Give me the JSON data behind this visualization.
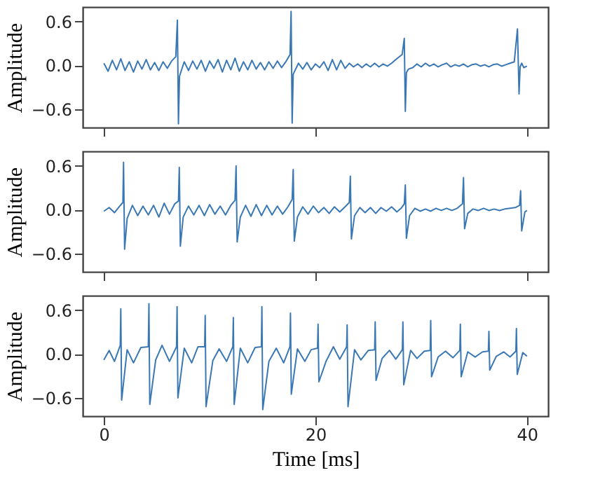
{
  "chart_data": [
    {
      "type": "line",
      "ylabel": "Amplitude",
      "xlim": [
        -2,
        42
      ],
      "xticks": [
        0,
        20,
        40
      ],
      "ylim": [
        -0.85,
        0.8
      ],
      "yticks": [
        {
          "value": -0.6,
          "label": "−0.6"
        },
        {
          "value": 0,
          "label": "0.0"
        },
        {
          "value": 0.6,
          "label": "0.6"
        }
      ],
      "tick_labels": "y",
      "grid": false,
      "series": [
        {
          "color": "#3a78b5",
          "x": [
            0,
            0.4,
            0.8,
            1.2,
            1.6,
            2,
            2.4,
            2.8,
            3.2,
            3.6,
            4,
            4.4,
            4.8,
            5.2,
            5.6,
            6,
            6.4,
            6.8,
            6.95,
            7.05,
            7.15,
            7.3,
            7.6,
            8,
            8.4,
            8.8,
            9.2,
            9.6,
            10,
            10.4,
            10.8,
            11.2,
            11.6,
            12,
            12.4,
            12.8,
            13.2,
            13.6,
            14,
            14.4,
            14.8,
            15.2,
            15.6,
            16,
            16.4,
            16.8,
            17.2,
            17.6,
            17.7,
            17.8,
            17.9,
            18.1,
            18.4,
            18.8,
            19.2,
            19.6,
            20,
            20.4,
            20.8,
            21.2,
            21.6,
            22,
            22.4,
            22.8,
            23.2,
            23.6,
            24,
            24.4,
            24.8,
            25.2,
            25.6,
            26,
            26.4,
            26.8,
            27.2,
            27.6,
            28.2,
            28.4,
            28.5,
            28.6,
            28.8,
            29.2,
            29.6,
            30,
            30.4,
            30.8,
            31.2,
            31.6,
            32,
            32.4,
            32.8,
            33.2,
            33.6,
            34,
            34.4,
            34.8,
            35.2,
            35.6,
            36,
            36.4,
            36.8,
            37.2,
            37.6,
            38,
            38.4,
            38.8,
            39.1,
            39.25,
            39.35,
            39.5,
            39.7,
            40
          ],
          "values": [
            0.03,
            -0.08,
            0.07,
            -0.06,
            0.09,
            -0.07,
            0.05,
            -0.09,
            0.06,
            -0.05,
            0.08,
            -0.06,
            0.04,
            -0.07,
            0.05,
            -0.04,
            0.06,
            0.12,
            0.62,
            -0.8,
            -0.15,
            -0.08,
            0.05,
            -0.07,
            0.06,
            -0.05,
            0.07,
            -0.08,
            0.06,
            -0.04,
            0.08,
            -0.09,
            0.07,
            -0.06,
            0.1,
            -0.08,
            0.05,
            -0.06,
            0.07,
            -0.05,
            0.04,
            -0.06,
            0.05,
            -0.04,
            0.06,
            -0.03,
            0.05,
            0.15,
            0.74,
            -0.79,
            -0.12,
            -0.06,
            0.03,
            -0.05,
            0.04,
            -0.06,
            0.02,
            -0.03,
            0.05,
            -0.07,
            0.08,
            -0.06,
            0.07,
            -0.04,
            0.03,
            -0.02,
            0.02,
            -0.03,
            0.02,
            -0.02,
            0.03,
            -0.02,
            0.02,
            -0.01,
            0.03,
            0.08,
            0.15,
            0.37,
            -0.63,
            -0.1,
            -0.05,
            -0.03,
            0.02,
            -0.02,
            0.03,
            -0.01,
            0.02,
            -0.02,
            0.01,
            0.03,
            -0.02,
            0.01,
            -0.01,
            0.02,
            -0.02,
            0.01,
            0.02,
            -0.01,
            0.01,
            -0.02,
            0.01,
            0.02,
            -0.01,
            0.01,
            0.03,
            0.05,
            0.5,
            -0.39,
            -0.02,
            0.03,
            -0.03,
            -0.01
          ]
        }
      ]
    },
    {
      "type": "line",
      "ylabel": "Amplitude",
      "xlim": [
        -2,
        42
      ],
      "xticks": [
        0,
        20,
        40
      ],
      "ylim": [
        -0.85,
        0.8
      ],
      "yticks": [
        {
          "value": -0.6,
          "label": "−0.6"
        },
        {
          "value": 0,
          "label": "0.0"
        },
        {
          "value": 0.6,
          "label": "0.6"
        }
      ],
      "tick_labels": "y",
      "grid": false,
      "series": [
        {
          "color": "#3a78b5",
          "x": [
            0,
            0.5,
            1.0,
            1.5,
            1.8,
            1.86,
            1.96,
            2.2,
            2.7,
            3.2,
            3.7,
            4.2,
            4.7,
            5.2,
            5.7,
            6.2,
            6.7,
            7.05,
            7.13,
            7.23,
            7.5,
            8,
            8.5,
            9,
            9.5,
            10,
            10.5,
            11,
            11.5,
            12,
            12.4,
            12.5,
            12.6,
            12.9,
            13.4,
            13.9,
            14.4,
            14.9,
            15.4,
            15.9,
            16.4,
            16.9,
            17.4,
            17.8,
            17.9,
            18.0,
            18.3,
            18.8,
            19.3,
            19.8,
            20.3,
            20.8,
            21.3,
            21.8,
            22.3,
            22.8,
            23.2,
            23.3,
            23.4,
            23.7,
            24.2,
            24.7,
            25.2,
            25.7,
            26.2,
            26.7,
            27.2,
            27.7,
            28.1,
            28.4,
            28.5,
            28.6,
            28.9,
            29.4,
            29.9,
            30.4,
            30.9,
            31.4,
            31.9,
            32.4,
            32.9,
            33.4,
            33.9,
            34.0,
            34.1,
            34.4,
            34.9,
            35.4,
            35.9,
            36.4,
            36.9,
            37.4,
            37.9,
            38.4,
            38.9,
            39.3,
            39.4,
            39.5,
            39.8,
            40
          ],
          "values": [
            -0.02,
            0.03,
            -0.04,
            0.05,
            0.1,
            0.65,
            -0.54,
            -0.12,
            0.06,
            -0.08,
            0.05,
            -0.07,
            0.06,
            -0.1,
            0.09,
            -0.06,
            0.08,
            0.12,
            0.58,
            -0.5,
            -0.1,
            0.05,
            -0.07,
            0.06,
            -0.08,
            0.07,
            -0.06,
            0.05,
            -0.07,
            0.06,
            0.13,
            0.6,
            -0.44,
            -0.1,
            0.06,
            -0.09,
            0.07,
            -0.08,
            0.06,
            -0.07,
            0.05,
            -0.06,
            0.04,
            0.14,
            0.55,
            -0.43,
            -0.1,
            0.04,
            -0.06,
            0.05,
            -0.04,
            0.03,
            -0.05,
            0.04,
            -0.03,
            0.04,
            0.1,
            0.46,
            -0.4,
            -0.08,
            0.03,
            -0.04,
            0.03,
            -0.05,
            0.03,
            -0.02,
            0.04,
            -0.03,
            0.02,
            0.08,
            0.34,
            -0.39,
            -0.08,
            0.02,
            -0.02,
            0.01,
            -0.02,
            0.02,
            -0.01,
            0.02,
            -0.01,
            0.02,
            0.08,
            0.44,
            -0.26,
            -0.05,
            0.01,
            -0.01,
            0.02,
            -0.01,
            0.01,
            -0.01,
            0.01,
            0.02,
            0.03,
            0.06,
            0.26,
            -0.29,
            -0.03,
            -0.01
          ]
        }
      ]
    },
    {
      "type": "line",
      "xlabel": "Time [ms]",
      "ylabel": "Amplitude",
      "xlim": [
        -2,
        42
      ],
      "xticks": [
        0,
        20,
        40
      ],
      "ylim": [
        -0.85,
        0.8
      ],
      "yticks": [
        {
          "value": -0.6,
          "label": "−0.6"
        },
        {
          "value": 0,
          "label": "0.0"
        },
        {
          "value": 0.6,
          "label": "0.6"
        }
      ],
      "grid": false,
      "series": [
        {
          "color": "#3a78b5",
          "x": [
            0,
            0.5,
            1.0,
            1.55,
            1.6,
            1.68,
            2.2,
            2.8,
            3.5,
            4.2,
            4.26,
            4.34,
            4.9,
            5.5,
            6.2,
            6.87,
            6.92,
            7.0,
            7.6,
            8.3,
            8.9,
            9.53,
            9.58,
            9.66,
            10.3,
            10.9,
            11.6,
            12.19,
            12.24,
            12.32,
            12.9,
            13.6,
            14.3,
            14.89,
            14.94,
            15.02,
            15.6,
            16.3,
            17.0,
            17.59,
            17.64,
            17.72,
            18.3,
            19.0,
            19.6,
            20.2,
            20.25,
            20.33,
            21.0,
            21.7,
            22.3,
            22.95,
            23.0,
            23.08,
            23.7,
            24.3,
            25.0,
            25.6,
            25.65,
            25.73,
            26.3,
            27.0,
            27.6,
            28.22,
            28.27,
            28.35,
            29.0,
            29.6,
            30.3,
            30.85,
            30.9,
            30.98,
            31.6,
            32.3,
            33.0,
            33.65,
            33.7,
            33.78,
            34.4,
            35.1,
            35.8,
            36.35,
            36.4,
            36.48,
            37.1,
            37.8,
            38.4,
            38.95,
            39.0,
            39.08,
            39.6,
            40
          ],
          "values": [
            -0.08,
            0.05,
            -0.1,
            0.12,
            0.62,
            -0.63,
            0.06,
            -0.12,
            0.09,
            0.1,
            0.69,
            -0.69,
            -0.08,
            0.12,
            -0.1,
            0.1,
            0.65,
            -0.6,
            0.08,
            -0.12,
            0.1,
            0.1,
            0.53,
            -0.72,
            -0.09,
            0.07,
            -0.1,
            0.1,
            0.5,
            -0.69,
            0.08,
            -0.12,
            0.09,
            0.1,
            0.65,
            -0.76,
            -0.1,
            0.08,
            -0.12,
            0.1,
            0.56,
            -0.55,
            0.07,
            -0.1,
            0.06,
            0.08,
            0.41,
            -0.38,
            -0.1,
            0.1,
            -0.07,
            0.1,
            0.4,
            -0.72,
            0.06,
            -0.08,
            0.05,
            0.06,
            0.44,
            -0.36,
            -0.06,
            0.05,
            -0.07,
            0.06,
            0.44,
            -0.42,
            0.05,
            -0.06,
            0.04,
            0.05,
            0.46,
            -0.31,
            -0.04,
            0.04,
            -0.05,
            0.05,
            0.41,
            -0.31,
            0.03,
            -0.04,
            0.03,
            0.04,
            0.31,
            -0.22,
            -0.03,
            0.03,
            -0.04,
            0.04,
            0.35,
            -0.28,
            0.02,
            -0.03
          ]
        }
      ]
    }
  ]
}
